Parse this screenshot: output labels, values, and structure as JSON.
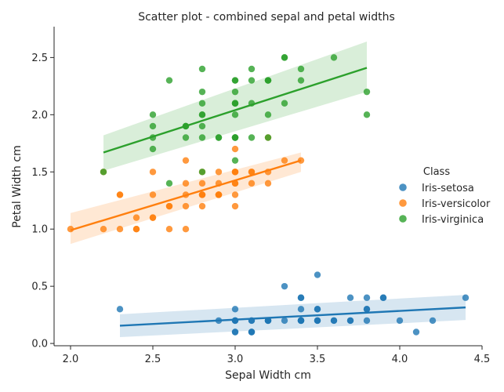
{
  "chart_data": {
    "type": "scatter",
    "title": "Scatter plot - combined sepal and petal widths",
    "xlabel": "Sepal Width cm",
    "ylabel": "Petal Width cm",
    "xlim": [
      1.9,
      4.5
    ],
    "ylim": [
      -0.02,
      2.77
    ],
    "x_ticks": [
      {
        "value": 2.0,
        "label": "2.0"
      },
      {
        "value": 2.5,
        "label": "2.5"
      },
      {
        "value": 3.0,
        "label": "3.0"
      },
      {
        "value": 3.5,
        "label": "3.5"
      },
      {
        "value": 4.0,
        "label": "4.0"
      },
      {
        "value": 4.5,
        "label": "4.5"
      }
    ],
    "y_ticks": [
      {
        "value": 0.0,
        "label": "0.0"
      },
      {
        "value": 0.5,
        "label": "0.5"
      },
      {
        "value": 1.0,
        "label": "1.0"
      },
      {
        "value": 1.5,
        "label": "1.5"
      },
      {
        "value": 2.0,
        "label": "2.0"
      },
      {
        "value": 2.5,
        "label": "2.5"
      }
    ],
    "grid": false,
    "legend": {
      "title": "Class",
      "position": "right"
    },
    "series": [
      {
        "name": "Iris-setosa",
        "color": "#1f77b4",
        "points": [
          [
            3.5,
            0.2
          ],
          [
            3.0,
            0.2
          ],
          [
            3.2,
            0.2
          ],
          [
            3.1,
            0.2
          ],
          [
            3.6,
            0.2
          ],
          [
            3.9,
            0.4
          ],
          [
            3.4,
            0.3
          ],
          [
            3.4,
            0.2
          ],
          [
            2.9,
            0.2
          ],
          [
            3.1,
            0.1
          ],
          [
            3.7,
            0.2
          ],
          [
            3.4,
            0.2
          ],
          [
            3.0,
            0.1
          ],
          [
            3.0,
            0.1
          ],
          [
            4.0,
            0.2
          ],
          [
            4.4,
            0.4
          ],
          [
            3.9,
            0.4
          ],
          [
            3.5,
            0.3
          ],
          [
            3.8,
            0.3
          ],
          [
            3.8,
            0.3
          ],
          [
            3.4,
            0.2
          ],
          [
            3.7,
            0.4
          ],
          [
            3.6,
            0.2
          ],
          [
            3.3,
            0.5
          ],
          [
            3.4,
            0.2
          ],
          [
            3.0,
            0.2
          ],
          [
            3.4,
            0.4
          ],
          [
            3.5,
            0.2
          ],
          [
            3.4,
            0.2
          ],
          [
            3.2,
            0.2
          ],
          [
            3.1,
            0.2
          ],
          [
            3.4,
            0.4
          ],
          [
            4.1,
            0.1
          ],
          [
            4.2,
            0.2
          ],
          [
            3.1,
            0.1
          ],
          [
            3.2,
            0.2
          ],
          [
            3.5,
            0.2
          ],
          [
            3.1,
            0.1
          ],
          [
            3.0,
            0.2
          ],
          [
            3.4,
            0.2
          ],
          [
            3.5,
            0.3
          ],
          [
            2.3,
            0.3
          ],
          [
            3.2,
            0.2
          ],
          [
            3.5,
            0.6
          ],
          [
            3.8,
            0.4
          ],
          [
            3.0,
            0.3
          ],
          [
            3.8,
            0.2
          ],
          [
            3.2,
            0.2
          ],
          [
            3.7,
            0.2
          ],
          [
            3.3,
            0.2
          ]
        ],
        "fit": {
          "x": [
            2.3,
            4.4
          ],
          "y": [
            0.155,
            0.315
          ],
          "ci_upper": [
            0.255,
            0.425
          ],
          "ci_lower": [
            0.055,
            0.205
          ]
        }
      },
      {
        "name": "Iris-versicolor",
        "color": "#ff7f0e",
        "points": [
          [
            3.2,
            1.4
          ],
          [
            3.2,
            1.5
          ],
          [
            3.1,
            1.5
          ],
          [
            2.3,
            1.3
          ],
          [
            2.8,
            1.5
          ],
          [
            2.8,
            1.3
          ],
          [
            3.3,
            1.6
          ],
          [
            2.4,
            1.0
          ],
          [
            2.9,
            1.3
          ],
          [
            2.7,
            1.4
          ],
          [
            2.0,
            1.0
          ],
          [
            3.0,
            1.5
          ],
          [
            2.2,
            1.0
          ],
          [
            2.9,
            1.4
          ],
          [
            2.9,
            1.3
          ],
          [
            3.1,
            1.4
          ],
          [
            3.0,
            1.5
          ],
          [
            2.7,
            1.0
          ],
          [
            2.2,
            1.5
          ],
          [
            2.5,
            1.1
          ],
          [
            3.2,
            1.8
          ],
          [
            2.8,
            1.3
          ],
          [
            2.5,
            1.5
          ],
          [
            2.8,
            1.2
          ],
          [
            2.9,
            1.3
          ],
          [
            3.0,
            1.4
          ],
          [
            2.8,
            1.4
          ],
          [
            3.0,
            1.7
          ],
          [
            2.9,
            1.5
          ],
          [
            2.6,
            1.0
          ],
          [
            2.4,
            1.1
          ],
          [
            2.4,
            1.0
          ],
          [
            2.7,
            1.2
          ],
          [
            2.7,
            1.6
          ],
          [
            3.0,
            1.5
          ],
          [
            3.4,
            1.6
          ],
          [
            3.1,
            1.5
          ],
          [
            2.3,
            1.3
          ],
          [
            3.0,
            1.3
          ],
          [
            2.5,
            1.3
          ],
          [
            2.6,
            1.2
          ],
          [
            3.0,
            1.4
          ],
          [
            2.6,
            1.2
          ],
          [
            2.3,
            1.0
          ],
          [
            2.7,
            1.3
          ],
          [
            3.0,
            1.2
          ],
          [
            2.9,
            1.3
          ],
          [
            2.9,
            1.3
          ],
          [
            2.5,
            1.1
          ],
          [
            2.8,
            1.3
          ]
        ],
        "fit": {
          "x": [
            2.0,
            3.4
          ],
          "y": [
            0.99,
            1.6
          ],
          "ci_upper": [
            1.14,
            1.67
          ],
          "ci_lower": [
            0.87,
            1.5
          ]
        }
      },
      {
        "name": "Iris-virginica",
        "color": "#2ca02c",
        "points": [
          [
            3.3,
            2.5
          ],
          [
            2.7,
            1.9
          ],
          [
            3.0,
            2.1
          ],
          [
            2.9,
            1.8
          ],
          [
            3.0,
            2.2
          ],
          [
            3.0,
            2.1
          ],
          [
            2.5,
            1.7
          ],
          [
            2.9,
            1.8
          ],
          [
            2.5,
            1.8
          ],
          [
            3.6,
            2.5
          ],
          [
            3.2,
            2.0
          ],
          [
            2.7,
            1.9
          ],
          [
            3.0,
            2.1
          ],
          [
            2.5,
            2.0
          ],
          [
            2.8,
            2.4
          ],
          [
            3.2,
            2.3
          ],
          [
            3.0,
            1.8
          ],
          [
            3.8,
            2.2
          ],
          [
            2.6,
            2.3
          ],
          [
            2.2,
            1.5
          ],
          [
            3.2,
            2.3
          ],
          [
            2.8,
            2.0
          ],
          [
            2.8,
            2.0
          ],
          [
            2.7,
            1.8
          ],
          [
            3.3,
            2.1
          ],
          [
            3.2,
            1.8
          ],
          [
            2.8,
            1.8
          ],
          [
            3.0,
            1.8
          ],
          [
            2.8,
            2.1
          ],
          [
            3.0,
            1.6
          ],
          [
            2.8,
            1.9
          ],
          [
            3.8,
            2.0
          ],
          [
            2.8,
            2.2
          ],
          [
            2.8,
            1.5
          ],
          [
            2.6,
            1.4
          ],
          [
            3.0,
            2.3
          ],
          [
            3.4,
            2.4
          ],
          [
            3.1,
            1.8
          ],
          [
            3.0,
            1.8
          ],
          [
            3.1,
            2.1
          ],
          [
            3.1,
            2.4
          ],
          [
            3.1,
            2.3
          ],
          [
            2.7,
            1.9
          ],
          [
            3.2,
            2.3
          ],
          [
            3.3,
            2.5
          ],
          [
            3.0,
            2.3
          ],
          [
            2.5,
            1.9
          ],
          [
            3.0,
            2.0
          ],
          [
            3.4,
            2.3
          ],
          [
            3.0,
            1.8
          ]
        ],
        "fit": {
          "x": [
            2.2,
            3.8
          ],
          "y": [
            1.67,
            2.41
          ],
          "ci_upper": [
            1.82,
            2.64
          ],
          "ci_lower": [
            1.51,
            2.2
          ]
        }
      }
    ]
  }
}
